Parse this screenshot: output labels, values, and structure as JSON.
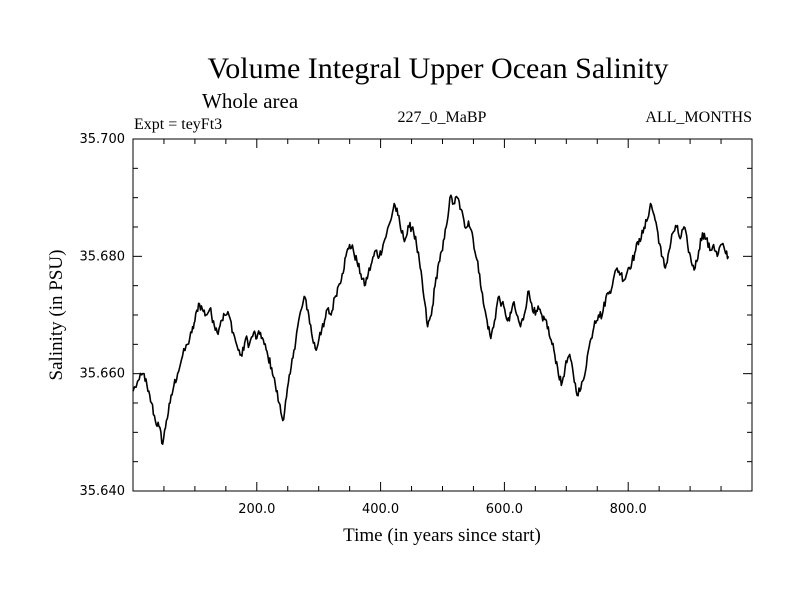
{
  "chart_data": {
    "type": "line",
    "title": "Volume Integral Upper Ocean Salinity",
    "subtitle": "Whole area",
    "info_left": "Expt = teyFt3",
    "info_center": "227_0_MaBP",
    "info_right": "ALL_MONTHS",
    "xlabel": "Time (in years since start)",
    "ylabel": "Salinity (in PSU)",
    "xlim": [
      0,
      1000
    ],
    "ylim": [
      35.64,
      35.7
    ],
    "x_ticks": [
      200,
      400,
      600,
      800
    ],
    "x_tick_labels": [
      "200.0",
      "400.0",
      "600.0",
      "800.0"
    ],
    "y_ticks": [
      35.64,
      35.66,
      35.68,
      35.7
    ],
    "y_tick_labels": [
      "35.640",
      "35.660",
      "35.680",
      "35.700"
    ],
    "grid": false,
    "series": [
      {
        "name": "salinity",
        "points": [
          [
            0,
            35.657
          ],
          [
            10,
            35.659
          ],
          [
            18,
            35.66
          ],
          [
            24,
            35.657
          ],
          [
            30,
            35.655
          ],
          [
            36,
            35.652
          ],
          [
            42,
            35.651
          ],
          [
            48,
            35.648
          ],
          [
            54,
            35.652
          ],
          [
            60,
            35.655
          ],
          [
            66,
            35.658
          ],
          [
            72,
            35.66
          ],
          [
            80,
            35.663
          ],
          [
            88,
            35.665
          ],
          [
            95,
            35.667
          ],
          [
            100,
            35.669
          ],
          [
            106,
            35.672
          ],
          [
            112,
            35.671
          ],
          [
            118,
            35.67
          ],
          [
            124,
            35.671
          ],
          [
            130,
            35.669
          ],
          [
            136,
            35.667
          ],
          [
            142,
            35.669
          ],
          [
            148,
            35.67
          ],
          [
            155,
            35.67
          ],
          [
            162,
            35.667
          ],
          [
            170,
            35.664
          ],
          [
            176,
            35.663
          ],
          [
            182,
            35.666
          ],
          [
            188,
            35.665
          ],
          [
            195,
            35.667
          ],
          [
            200,
            35.666
          ],
          [
            206,
            35.667
          ],
          [
            212,
            35.665
          ],
          [
            218,
            35.663
          ],
          [
            224,
            35.661
          ],
          [
            230,
            35.658
          ],
          [
            236,
            35.655
          ],
          [
            242,
            35.652
          ],
          [
            248,
            35.656
          ],
          [
            254,
            35.66
          ],
          [
            260,
            35.664
          ],
          [
            266,
            35.668
          ],
          [
            272,
            35.671
          ],
          [
            278,
            35.673
          ],
          [
            284,
            35.67
          ],
          [
            290,
            35.666
          ],
          [
            296,
            35.664
          ],
          [
            302,
            35.667
          ],
          [
            308,
            35.668
          ],
          [
            314,
            35.671
          ],
          [
            320,
            35.67
          ],
          [
            326,
            35.673
          ],
          [
            332,
            35.675
          ],
          [
            338,
            35.677
          ],
          [
            344,
            35.68
          ],
          [
            350,
            35.682
          ],
          [
            356,
            35.681
          ],
          [
            362,
            35.679
          ],
          [
            368,
            35.677
          ],
          [
            374,
            35.675
          ],
          [
            380,
            35.677
          ],
          [
            386,
            35.679
          ],
          [
            392,
            35.681
          ],
          [
            398,
            35.68
          ],
          [
            404,
            35.682
          ],
          [
            410,
            35.684
          ],
          [
            416,
            35.686
          ],
          [
            422,
            35.689
          ],
          [
            428,
            35.687
          ],
          [
            434,
            35.684
          ],
          [
            440,
            35.683
          ],
          [
            446,
            35.685
          ],
          [
            452,
            35.685
          ],
          [
            458,
            35.682
          ],
          [
            464,
            35.678
          ],
          [
            470,
            35.673
          ],
          [
            476,
            35.668
          ],
          [
            482,
            35.67
          ],
          [
            488,
            35.675
          ],
          [
            494,
            35.679
          ],
          [
            500,
            35.681
          ],
          [
            506,
            35.685
          ],
          [
            512,
            35.69
          ],
          [
            518,
            35.689
          ],
          [
            524,
            35.69
          ],
          [
            530,
            35.688
          ],
          [
            536,
            35.685
          ],
          [
            542,
            35.686
          ],
          [
            548,
            35.684
          ],
          [
            554,
            35.68
          ],
          [
            560,
            35.677
          ],
          [
            566,
            35.672
          ],
          [
            572,
            35.669
          ],
          [
            578,
            35.666
          ],
          [
            584,
            35.669
          ],
          [
            590,
            35.673
          ],
          [
            596,
            35.672
          ],
          [
            602,
            35.67
          ],
          [
            608,
            35.669
          ],
          [
            614,
            35.672
          ],
          [
            620,
            35.67
          ],
          [
            626,
            35.668
          ],
          [
            632,
            35.67
          ],
          [
            638,
            35.674
          ],
          [
            644,
            35.672
          ],
          [
            650,
            35.67
          ],
          [
            656,
            35.671
          ],
          [
            662,
            35.669
          ],
          [
            668,
            35.669
          ],
          [
            674,
            35.666
          ],
          [
            680,
            35.664
          ],
          [
            686,
            35.661
          ],
          [
            692,
            35.658
          ],
          [
            698,
            35.661
          ],
          [
            704,
            35.663
          ],
          [
            710,
            35.661
          ],
          [
            716,
            35.657
          ],
          [
            722,
            35.657
          ],
          [
            728,
            35.659
          ],
          [
            734,
            35.663
          ],
          [
            740,
            35.666
          ],
          [
            746,
            35.669
          ],
          [
            752,
            35.67
          ],
          [
            758,
            35.67
          ],
          [
            764,
            35.673
          ],
          [
            770,
            35.674
          ],
          [
            776,
            35.676
          ],
          [
            782,
            35.678
          ],
          [
            788,
            35.677
          ],
          [
            794,
            35.676
          ],
          [
            800,
            35.678
          ],
          [
            806,
            35.679
          ],
          [
            812,
            35.681
          ],
          [
            818,
            35.683
          ],
          [
            824,
            35.684
          ],
          [
            830,
            35.686
          ],
          [
            836,
            35.689
          ],
          [
            842,
            35.687
          ],
          [
            848,
            35.684
          ],
          [
            854,
            35.68
          ],
          [
            860,
            35.678
          ],
          [
            866,
            35.681
          ],
          [
            872,
            35.684
          ],
          [
            878,
            35.685
          ],
          [
            884,
            35.683
          ],
          [
            890,
            35.685
          ],
          [
            896,
            35.682
          ],
          [
            902,
            35.679
          ],
          [
            908,
            35.678
          ],
          [
            914,
            35.681
          ],
          [
            920,
            35.684
          ],
          [
            926,
            35.683
          ],
          [
            932,
            35.681
          ],
          [
            938,
            35.682
          ],
          [
            944,
            35.68
          ],
          [
            950,
            35.682
          ],
          [
            956,
            35.681
          ],
          [
            962,
            35.68
          ]
        ]
      }
    ]
  }
}
